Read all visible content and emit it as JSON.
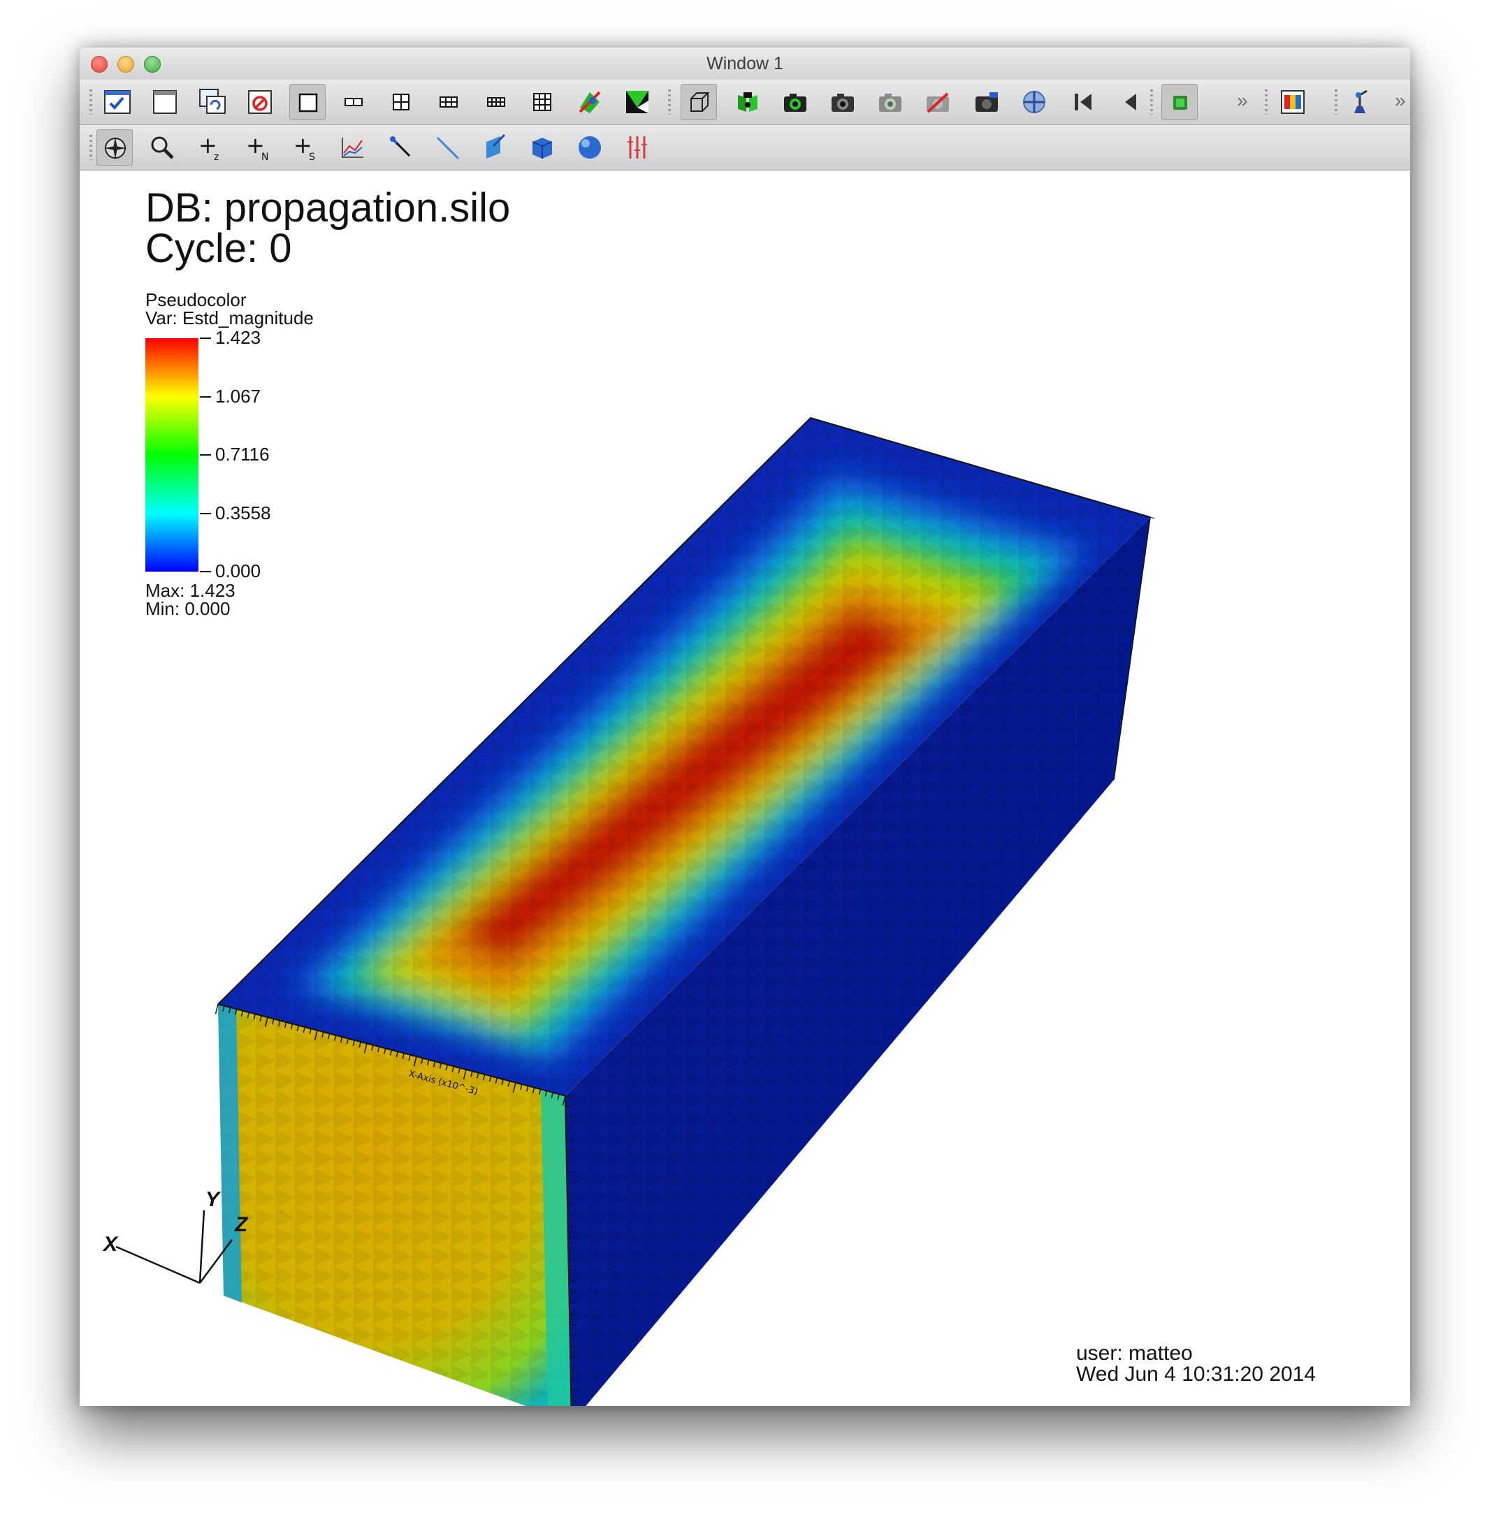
{
  "window": {
    "title": "Window 1"
  },
  "toolbar_top": {
    "buttons": [
      {
        "name": "active-window-icon",
        "pressed": false
      },
      {
        "name": "new-window-icon",
        "pressed": false
      },
      {
        "name": "copy-window-icon",
        "pressed": false
      },
      {
        "name": "clear-window-icon",
        "pressed": false
      },
      {
        "name": "layout-1x1-icon",
        "pressed": true
      },
      {
        "name": "layout-1x2-icon",
        "pressed": false
      },
      {
        "name": "layout-2x2-icon",
        "pressed": false
      },
      {
        "name": "layout-2x3-icon",
        "pressed": false
      },
      {
        "name": "layout-2x4-icon",
        "pressed": false
      },
      {
        "name": "layout-3x3-icon",
        "pressed": false
      },
      {
        "name": "spin-mode-icon",
        "pressed": false
      },
      {
        "name": "invert-background-icon",
        "pressed": false
      },
      {
        "name": "perspective-box-icon",
        "pressed": true
      },
      {
        "name": "lock-view-icon",
        "pressed": false
      },
      {
        "name": "lock-time-icon",
        "pressed": false
      },
      {
        "name": "camera-save-icon",
        "pressed": false
      },
      {
        "name": "camera-restore-icon",
        "pressed": false
      },
      {
        "name": "camera-undo-icon",
        "pressed": false
      },
      {
        "name": "camera-redo-icon",
        "pressed": false
      },
      {
        "name": "recenter-view-icon",
        "pressed": false
      },
      {
        "name": "reverse-step-icon",
        "pressed": false
      },
      {
        "name": "reverse-play-icon",
        "pressed": false
      },
      {
        "name": "stop-icon",
        "pressed": true
      },
      {
        "name": "more-chevron-icon",
        "pressed": false
      },
      {
        "name": "color-table-icon",
        "pressed": false
      },
      {
        "name": "lighting-icon",
        "pressed": false
      },
      {
        "name": "more-chevron-icon",
        "pressed": false
      }
    ]
  },
  "toolbar_bottom": {
    "buttons": [
      {
        "name": "navigate-mode-icon",
        "pressed": true
      },
      {
        "name": "zoom-mode-icon",
        "pressed": false
      },
      {
        "name": "zone-pick-icon",
        "pressed": false,
        "glyph": "+",
        "sub": "z"
      },
      {
        "name": "node-pick-icon",
        "pressed": false,
        "glyph": "+",
        "sub": "N"
      },
      {
        "name": "spreadsheet-pick-icon",
        "pressed": false,
        "glyph": "+",
        "sub": "S"
      },
      {
        "name": "curve-pick-icon",
        "pressed": false
      },
      {
        "name": "lineout-pick-icon",
        "pressed": false
      },
      {
        "name": "line-tool-icon",
        "pressed": false
      },
      {
        "name": "plane-tool-icon",
        "pressed": false
      },
      {
        "name": "box-tool-icon",
        "pressed": false
      },
      {
        "name": "sphere-tool-icon",
        "pressed": false
      },
      {
        "name": "axis-restriction-icon",
        "pressed": false
      }
    ]
  },
  "annotations": {
    "db_line": "DB: propagation.silo",
    "cycle_line": "Cycle: 0",
    "plot_type": "Pseudocolor",
    "variable": "Var: Estd_magnitude",
    "max_line": "Max:  1.423",
    "min_line": "Min:  0.000",
    "user_line": "user: matteo",
    "date_line": "Wed Jun  4 10:31:20 2014",
    "x_axis_title": "X-Axis (x10^-3)",
    "triad": {
      "x": "X",
      "y": "Y",
      "z": "Z"
    }
  },
  "legend": {
    "ticks": [
      "1.423",
      "1.067",
      "0.7116",
      "0.3558",
      "0.000"
    ],
    "colors": [
      "#ff0000",
      "#ffff00",
      "#00ff00",
      "#00ffff",
      "#0000ff"
    ]
  },
  "colors": {
    "deep_blue": "#00148c",
    "field_red": "#c01400",
    "front_face": "#d2b400"
  }
}
